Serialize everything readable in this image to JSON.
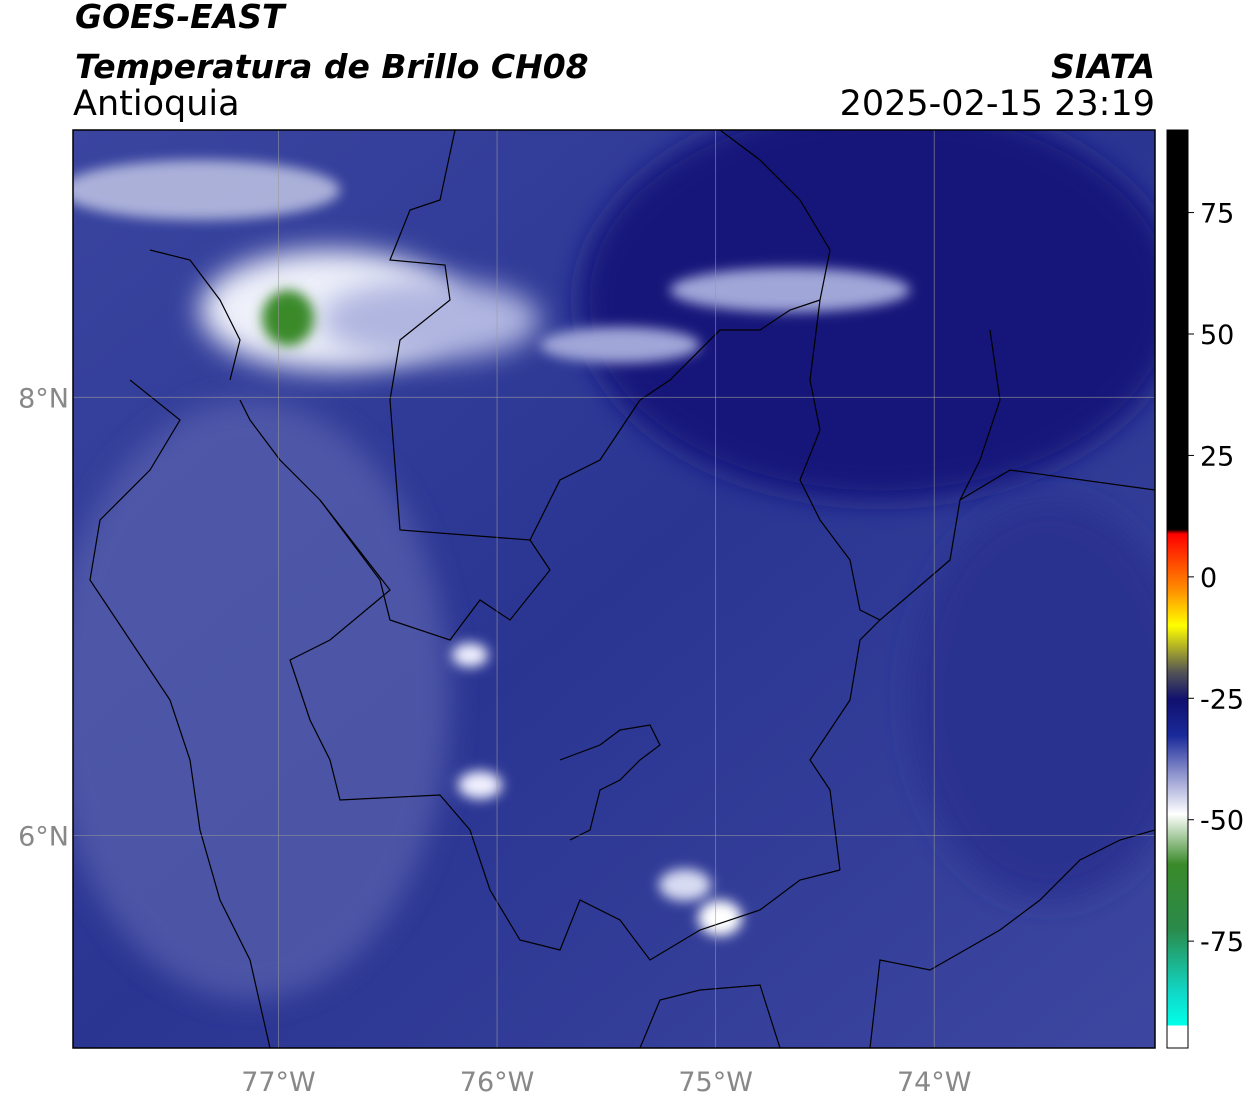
{
  "header": {
    "title": "GOES-EAST",
    "subtitle": "Temperatura de Brillo CH08",
    "region": "Antioquia",
    "source": "SIATA",
    "timestamp": "2025-02-15 23:19"
  },
  "map": {
    "xlim": [
      -77.94,
      -72.99
    ],
    "ylim": [
      5.03,
      9.22
    ],
    "xticks": [
      {
        "value": -77,
        "label": "77°W"
      },
      {
        "value": -76,
        "label": "76°W"
      },
      {
        "value": -75,
        "label": "75°W"
      },
      {
        "value": -74,
        "label": "74°W"
      }
    ],
    "yticks": [
      {
        "value": 8,
        "label": "8°N"
      },
      {
        "value": 6,
        "label": "6°N"
      }
    ],
    "grid": true
  },
  "colorbar": {
    "ylim": [
      -97,
      92
    ],
    "yticks": [
      75,
      50,
      25,
      0,
      -25,
      -50,
      -75
    ]
  }
}
